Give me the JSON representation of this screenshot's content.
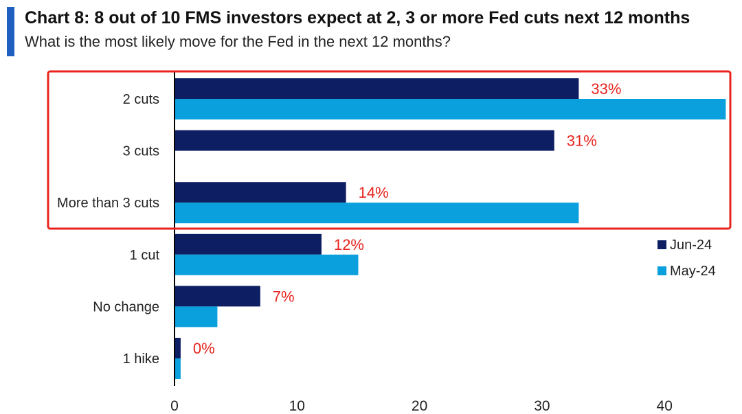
{
  "header": {
    "title": "Chart 8: 8 out of 10 FMS investors expect at 2, 3 or more Fed cuts next 12 months",
    "subtitle": "What is the most likely move for the Fed in the next 12 months?"
  },
  "colors": {
    "accent": "#1f5fbf",
    "jun": "#0d1e63",
    "may": "#0aa0de",
    "label": "#e8231d",
    "highlight_box": "#e8231d"
  },
  "chart_data": {
    "type": "bar",
    "orientation": "horizontal",
    "categories": [
      "2 cuts",
      "3 cuts",
      "More than 3 cuts",
      "1 cut",
      "No change",
      "1 hike"
    ],
    "series": [
      {
        "name": "Jun-24",
        "values": [
          33,
          31,
          14,
          12,
          7,
          0.5
        ]
      },
      {
        "name": "May-24",
        "values": [
          45,
          0,
          33,
          15,
          3.5,
          0.5
        ]
      }
    ],
    "data_labels": [
      "33%",
      "31%",
      "14%",
      "12%",
      "7%",
      "0%"
    ],
    "xlim": [
      0,
      45
    ],
    "xticks": [
      0,
      10,
      20,
      30,
      40
    ],
    "legend_position": "right",
    "grid": false,
    "highlight_categories": [
      "2 cuts",
      "3 cuts",
      "More than 3 cuts"
    ]
  }
}
